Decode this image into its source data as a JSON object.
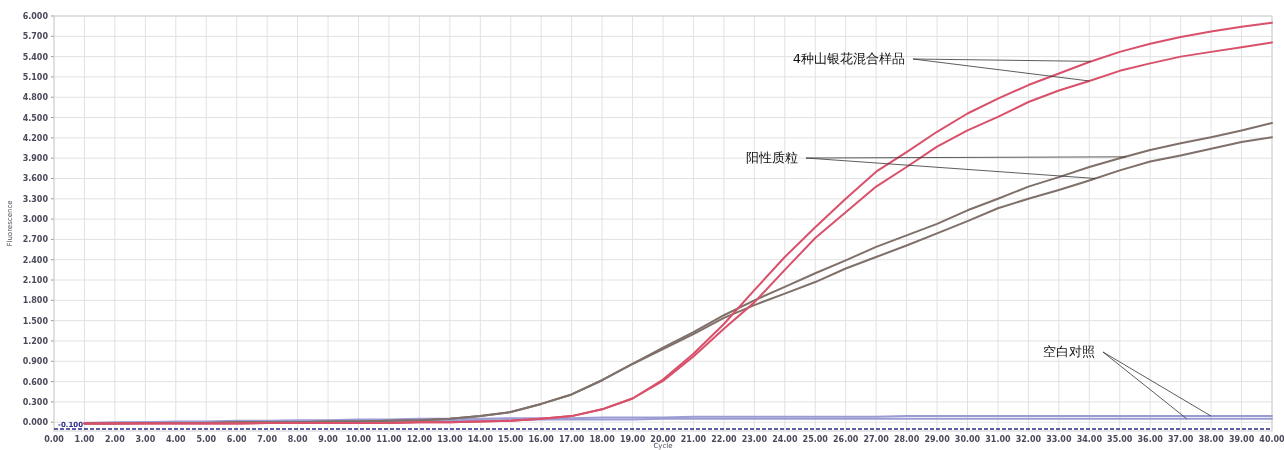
{
  "chart_data": {
    "type": "line",
    "xlabel": "Cycle",
    "ylabel": "Fluorescence",
    "x": [
      1,
      2,
      3,
      4,
      5,
      6,
      7,
      8,
      9,
      10,
      11,
      12,
      13,
      14,
      15,
      16,
      17,
      18,
      19,
      20,
      21,
      22,
      23,
      24,
      25,
      26,
      27,
      28,
      29,
      30,
      31,
      32,
      33,
      34,
      35,
      36,
      37,
      38,
      39,
      40
    ],
    "xlim": [
      0,
      40
    ],
    "ylim": [
      -0.13,
      6.0
    ],
    "xticks": [
      {
        "value": 0,
        "label": "0.00"
      },
      {
        "value": 1,
        "label": "1.00"
      },
      {
        "value": 2,
        "label": "2.00"
      },
      {
        "value": 3,
        "label": "3.00"
      },
      {
        "value": 4,
        "label": "4.00"
      },
      {
        "value": 5,
        "label": "5.00"
      },
      {
        "value": 6,
        "label": "6.00"
      },
      {
        "value": 7,
        "label": "7.00"
      },
      {
        "value": 8,
        "label": "8.00"
      },
      {
        "value": 9,
        "label": "9.00"
      },
      {
        "value": 10,
        "label": "10.00"
      },
      {
        "value": 11,
        "label": "11.00"
      },
      {
        "value": 12,
        "label": "12.00"
      },
      {
        "value": 13,
        "label": "13.00"
      },
      {
        "value": 14,
        "label": "14.00"
      },
      {
        "value": 15,
        "label": "15.00"
      },
      {
        "value": 16,
        "label": "16.00"
      },
      {
        "value": 17,
        "label": "17.00"
      },
      {
        "value": 18,
        "label": "18.00"
      },
      {
        "value": 19,
        "label": "19.00"
      },
      {
        "value": 20,
        "label": "20.00"
      },
      {
        "value": 21,
        "label": "21.00"
      },
      {
        "value": 22,
        "label": "22.00"
      },
      {
        "value": 23,
        "label": "23.00"
      },
      {
        "value": 24,
        "label": "24.00"
      },
      {
        "value": 25,
        "label": "25.00"
      },
      {
        "value": 26,
        "label": "26.00"
      },
      {
        "value": 27,
        "label": "27.00"
      },
      {
        "value": 28,
        "label": "28.00"
      },
      {
        "value": 29,
        "label": "29.00"
      },
      {
        "value": 30,
        "label": "30.00"
      },
      {
        "value": 31,
        "label": "31.00"
      },
      {
        "value": 32,
        "label": "32.00"
      },
      {
        "value": 33,
        "label": "33.00"
      },
      {
        "value": 34,
        "label": "34.00"
      },
      {
        "value": 35,
        "label": "35.00"
      },
      {
        "value": 36,
        "label": "36.00"
      },
      {
        "value": 37,
        "label": "37.00"
      },
      {
        "value": 38,
        "label": "38.00"
      },
      {
        "value": 39,
        "label": "39.00"
      },
      {
        "value": 40,
        "label": "40.00"
      }
    ],
    "yticks": [
      {
        "value": 0,
        "label": "0.000"
      },
      {
        "value": 0.3,
        "label": "0.300"
      },
      {
        "value": 0.6,
        "label": "0.600"
      },
      {
        "value": 0.9,
        "label": "0.900"
      },
      {
        "value": 1.2,
        "label": "1.200"
      },
      {
        "value": 1.5,
        "label": "1.500"
      },
      {
        "value": 1.8,
        "label": "1.800"
      },
      {
        "value": 2.1,
        "label": "2.100"
      },
      {
        "value": 2.4,
        "label": "2.400"
      },
      {
        "value": 2.7,
        "label": "2.700"
      },
      {
        "value": 3.0,
        "label": "3.000"
      },
      {
        "value": 3.3,
        "label": "3.300"
      },
      {
        "value": 3.6,
        "label": "3.600"
      },
      {
        "value": 3.9,
        "label": "3.900"
      },
      {
        "value": 4.2,
        "label": "4.200"
      },
      {
        "value": 4.5,
        "label": "4.500"
      },
      {
        "value": 4.8,
        "label": "4.800"
      },
      {
        "value": 5.1,
        "label": "5.100"
      },
      {
        "value": 5.4,
        "label": "5.400"
      },
      {
        "value": 5.7,
        "label": "5.700"
      },
      {
        "value": 6.0,
        "label": "6.000"
      }
    ],
    "grid": true,
    "series": [
      {
        "color": "#d9506a",
        "values": [
          -0.02,
          -0.02,
          -0.02,
          -0.02,
          -0.02,
          -0.02,
          -0.01,
          -0.01,
          -0.01,
          -0.01,
          -0.01,
          0.0,
          0.0,
          0.01,
          0.02,
          0.05,
          0.09,
          0.19,
          0.35,
          0.63,
          1.01,
          1.45,
          1.95,
          2.44,
          2.88,
          3.3,
          3.7,
          3.99,
          4.29,
          4.56,
          4.78,
          4.98,
          5.15,
          5.32,
          5.47,
          5.59,
          5.69,
          5.77,
          5.84,
          5.9
        ]
      },
      {
        "color": "#d9506a",
        "values": [
          -0.02,
          -0.02,
          -0.02,
          -0.02,
          -0.02,
          -0.02,
          -0.01,
          -0.01,
          -0.01,
          -0.01,
          -0.01,
          0.0,
          0.0,
          0.01,
          0.02,
          0.05,
          0.09,
          0.19,
          0.35,
          0.61,
          0.97,
          1.38,
          1.77,
          2.25,
          2.72,
          3.1,
          3.48,
          3.77,
          4.07,
          4.31,
          4.51,
          4.73,
          4.9,
          5.04,
          5.19,
          5.3,
          5.4,
          5.47,
          5.54,
          5.61
        ]
      },
      {
        "color": "#7f706a",
        "values": [
          -0.02,
          -0.02,
          -0.01,
          -0.01,
          -0.01,
          0.0,
          0.0,
          0.0,
          0.01,
          0.01,
          0.02,
          0.03,
          0.05,
          0.09,
          0.15,
          0.27,
          0.41,
          0.62,
          0.86,
          1.1,
          1.33,
          1.58,
          1.8,
          2.0,
          2.2,
          2.39,
          2.59,
          2.76,
          2.93,
          3.13,
          3.3,
          3.48,
          3.62,
          3.77,
          3.9,
          4.02,
          4.12,
          4.21,
          4.31,
          4.42
        ]
      },
      {
        "color": "#7f706a",
        "values": [
          -0.02,
          -0.02,
          -0.01,
          -0.01,
          -0.01,
          0.0,
          0.0,
          0.0,
          0.01,
          0.01,
          0.02,
          0.03,
          0.05,
          0.09,
          0.15,
          0.27,
          0.41,
          0.62,
          0.86,
          1.08,
          1.3,
          1.54,
          1.73,
          1.9,
          2.07,
          2.27,
          2.44,
          2.61,
          2.79,
          2.97,
          3.16,
          3.3,
          3.43,
          3.57,
          3.72,
          3.85,
          3.94,
          4.04,
          4.14,
          4.21
        ]
      },
      {
        "color": "#9c9cd4",
        "values": [
          -0.01,
          0.0,
          0.0,
          0.01,
          0.01,
          0.02,
          0.02,
          0.03,
          0.03,
          0.04,
          0.04,
          0.05,
          0.05,
          0.05,
          0.06,
          0.06,
          0.06,
          0.07,
          0.07,
          0.07,
          0.08,
          0.08,
          0.08,
          0.08,
          0.08,
          0.08,
          0.08,
          0.09,
          0.09,
          0.09,
          0.09,
          0.09,
          0.09,
          0.09,
          0.09,
          0.09,
          0.09,
          0.09,
          0.09,
          0.09
        ]
      },
      {
        "color": "#9c9cd4",
        "values": [
          -0.01,
          -0.01,
          0.0,
          0.0,
          0.0,
          0.01,
          0.01,
          0.01,
          0.02,
          0.02,
          0.02,
          0.03,
          0.03,
          0.03,
          0.03,
          0.04,
          0.04,
          0.04,
          0.04,
          0.05,
          0.05,
          0.05,
          0.05,
          0.05,
          0.05,
          0.05,
          0.05,
          0.05,
          0.05,
          0.05,
          0.05,
          0.05,
          0.05,
          0.05,
          0.05,
          0.05,
          0.05,
          0.05,
          0.05,
          0.05
        ]
      }
    ],
    "ref_lines": [
      {
        "axis": "y",
        "value": -0.1,
        "label": "-0.100",
        "color": "#2b2b8c",
        "line_style": "dashed"
      }
    ],
    "annotations": [
      {
        "text": "4种山银花混合样品",
        "x": 34.05,
        "y": 5.33
      },
      {
        "text": "阳性质粒",
        "x": 35.2,
        "y": 3.92
      },
      {
        "text": "空白对照",
        "x": 38.0,
        "y": 0.09
      }
    ]
  }
}
